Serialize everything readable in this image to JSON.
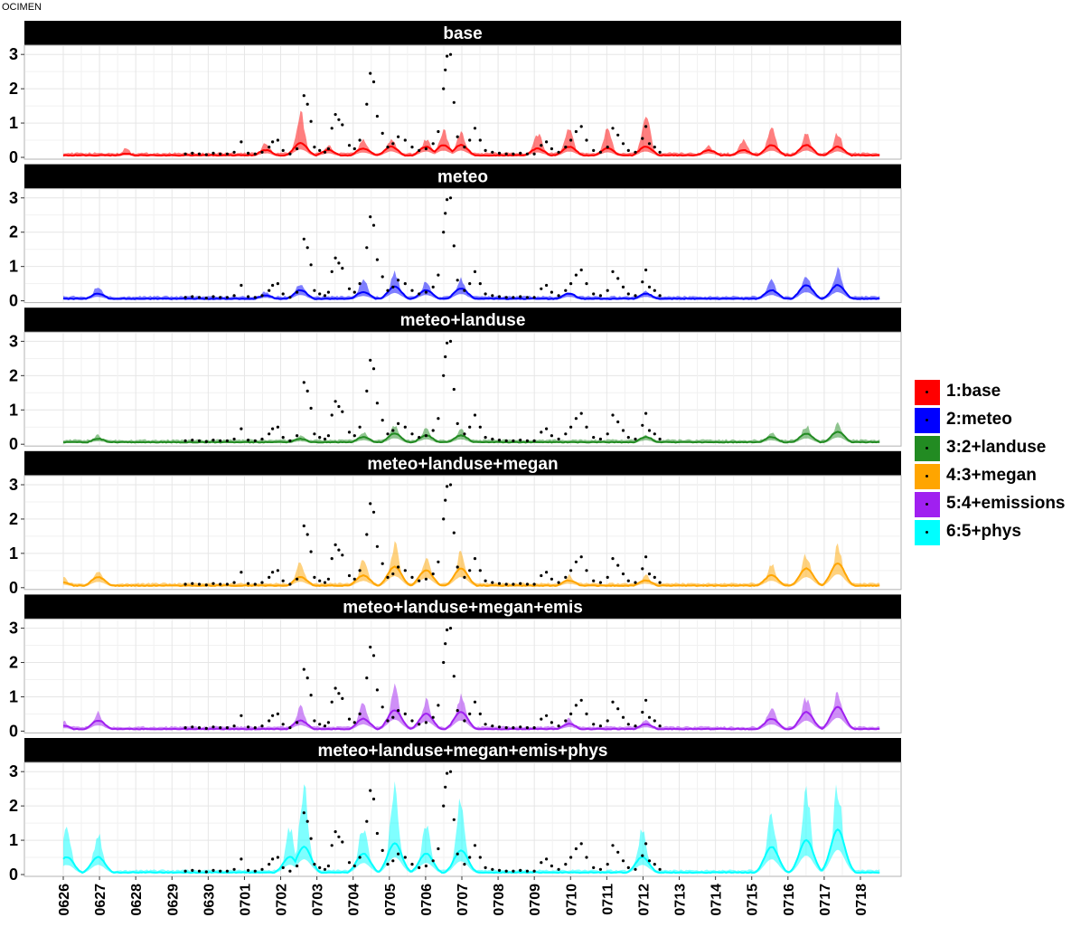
{
  "figure_title": "OCIMEN",
  "chart_data": {
    "type": "line",
    "title": "OCIMEN",
    "xlabel": "",
    "ylabel": "",
    "ylim": [
      0,
      3.1
    ],
    "y_ticks": [
      0,
      1,
      2,
      3
    ],
    "x_tick_labels": [
      "0626",
      "0627",
      "0628",
      "0629",
      "0630",
      "0701",
      "0702",
      "0703",
      "0704",
      "0705",
      "0706",
      "0707",
      "0708",
      "0709",
      "0710",
      "0711",
      "0712",
      "0713",
      "0714",
      "0715",
      "0716",
      "0717",
      "0718"
    ],
    "grid": true,
    "legend_position": "right",
    "legend": [
      {
        "label": "1:base",
        "color": "#ff0000"
      },
      {
        "label": "2:meteo",
        "color": "#0000ff"
      },
      {
        "label": "3:2+landuse",
        "color": "#228b22"
      },
      {
        "label": "4:3+megan",
        "color": "#ffa500"
      },
      {
        "label": "5:4+emissions",
        "color": "#a020f0"
      },
      {
        "label": "6:5+phys",
        "color": "#00ffff"
      }
    ],
    "panels": [
      {
        "strip": "base",
        "color": "#ff0000",
        "peaks": [
          [
            0.0,
            0.15,
            0.05
          ],
          [
            1.8,
            0.3,
            0.1
          ],
          [
            5.8,
            0.5,
            0.2
          ],
          [
            6.8,
            1.5,
            0.4
          ],
          [
            7.6,
            0.4,
            0.2
          ],
          [
            8.6,
            0.6,
            0.25
          ],
          [
            9.4,
            0.6,
            0.3
          ],
          [
            10.4,
            0.6,
            0.3
          ],
          [
            10.9,
            0.9,
            0.35
          ],
          [
            11.4,
            0.8,
            0.35
          ],
          [
            13.6,
            0.8,
            0.25
          ],
          [
            14.5,
            1.0,
            0.3
          ],
          [
            15.6,
            0.9,
            0.25
          ],
          [
            16.7,
            1.4,
            0.3
          ],
          [
            18.5,
            0.4,
            0.2
          ],
          [
            19.5,
            0.6,
            0.2
          ],
          [
            20.3,
            1.0,
            0.35
          ],
          [
            21.3,
            0.8,
            0.35
          ],
          [
            22.2,
            0.8,
            0.3
          ]
        ]
      },
      {
        "strip": "meteo",
        "color": "#0000ff",
        "peaks": [
          [
            0.0,
            0.15,
            0.05
          ],
          [
            1.0,
            0.5,
            0.2
          ],
          [
            5.8,
            0.3,
            0.15
          ],
          [
            6.8,
            0.6,
            0.3
          ],
          [
            8.6,
            0.7,
            0.25
          ],
          [
            9.5,
            0.9,
            0.4
          ],
          [
            10.4,
            0.6,
            0.3
          ],
          [
            11.4,
            0.7,
            0.35
          ],
          [
            14.5,
            0.3,
            0.2
          ],
          [
            16.7,
            0.3,
            0.2
          ],
          [
            20.3,
            0.7,
            0.3
          ],
          [
            21.3,
            0.9,
            0.45
          ],
          [
            22.2,
            1.0,
            0.45
          ]
        ]
      },
      {
        "strip": "meteo+landuse",
        "color": "#228b22",
        "peaks": [
          [
            0.0,
            0.1,
            0.05
          ],
          [
            1.0,
            0.3,
            0.15
          ],
          [
            6.8,
            0.3,
            0.15
          ],
          [
            8.6,
            0.4,
            0.2
          ],
          [
            9.5,
            0.6,
            0.3
          ],
          [
            10.4,
            0.5,
            0.25
          ],
          [
            11.4,
            0.5,
            0.25
          ],
          [
            16.7,
            0.3,
            0.2
          ],
          [
            20.3,
            0.4,
            0.2
          ],
          [
            21.3,
            0.6,
            0.3
          ],
          [
            22.2,
            0.7,
            0.35
          ]
        ]
      },
      {
        "strip": "meteo+landuse+megan",
        "color": "#ffa500",
        "peaks": [
          [
            0.0,
            0.35,
            0.15
          ],
          [
            1.0,
            0.6,
            0.3
          ],
          [
            6.8,
            0.8,
            0.3
          ],
          [
            8.6,
            0.9,
            0.35
          ],
          [
            9.5,
            1.4,
            0.6
          ],
          [
            10.4,
            1.0,
            0.5
          ],
          [
            11.4,
            1.2,
            0.55
          ],
          [
            14.5,
            0.4,
            0.2
          ],
          [
            16.7,
            0.4,
            0.2
          ],
          [
            20.3,
            0.8,
            0.35
          ],
          [
            21.3,
            1.1,
            0.55
          ],
          [
            22.2,
            1.3,
            0.7
          ]
        ]
      },
      {
        "strip": "meteo+landuse+megan+emis",
        "color": "#a020f0",
        "peaks": [
          [
            0.0,
            0.35,
            0.15
          ],
          [
            1.0,
            0.6,
            0.3
          ],
          [
            6.8,
            0.8,
            0.3
          ],
          [
            8.6,
            0.9,
            0.35
          ],
          [
            9.5,
            1.4,
            0.6
          ],
          [
            10.4,
            1.0,
            0.5
          ],
          [
            11.4,
            1.2,
            0.55
          ],
          [
            14.5,
            0.4,
            0.2
          ],
          [
            16.7,
            0.4,
            0.2
          ],
          [
            20.3,
            0.8,
            0.35
          ],
          [
            21.3,
            1.1,
            0.55
          ],
          [
            22.2,
            1.3,
            0.7
          ]
        ]
      },
      {
        "strip": "meteo+landuse+megan+emis+phys",
        "color": "#00ffff",
        "peaks": [
          [
            0.1,
            1.5,
            0.5
          ],
          [
            1.0,
            1.3,
            0.5
          ],
          [
            6.5,
            1.5,
            0.5
          ],
          [
            6.9,
            2.9,
            0.8
          ],
          [
            8.6,
            1.6,
            0.6
          ],
          [
            9.5,
            2.8,
            0.9
          ],
          [
            10.4,
            1.6,
            0.6
          ],
          [
            11.4,
            2.4,
            0.7
          ],
          [
            16.6,
            1.5,
            0.5
          ],
          [
            20.3,
            2.0,
            0.8
          ],
          [
            21.3,
            2.7,
            1.0
          ],
          [
            22.2,
            2.9,
            1.3
          ]
        ]
      }
    ],
    "observations": [
      [
        3.5,
        0.1
      ],
      [
        3.7,
        0.12
      ],
      [
        3.9,
        0.1
      ],
      [
        4.1,
        0.08
      ],
      [
        4.3,
        0.12
      ],
      [
        4.5,
        0.1
      ],
      [
        4.7,
        0.1
      ],
      [
        4.9,
        0.15
      ],
      [
        5.1,
        0.45
      ],
      [
        5.3,
        0.12
      ],
      [
        5.5,
        0.1
      ],
      [
        5.7,
        0.15
      ],
      [
        5.9,
        0.3
      ],
      [
        6.0,
        0.45
      ],
      [
        6.15,
        0.5
      ],
      [
        6.3,
        0.2
      ],
      [
        6.5,
        0.1
      ],
      [
        6.7,
        0.25
      ],
      [
        6.9,
        1.8
      ],
      [
        7.0,
        1.55
      ],
      [
        7.1,
        1.05
      ],
      [
        7.2,
        0.3
      ],
      [
        7.35,
        0.2
      ],
      [
        7.5,
        0.15
      ],
      [
        7.6,
        0.25
      ],
      [
        7.7,
        0.85
      ],
      [
        7.8,
        1.25
      ],
      [
        7.9,
        1.1
      ],
      [
        8.0,
        0.95
      ],
      [
        8.2,
        0.35
      ],
      [
        8.35,
        0.25
      ],
      [
        8.5,
        0.5
      ],
      [
        8.7,
        1.55
      ],
      [
        8.8,
        2.45
      ],
      [
        8.9,
        2.2
      ],
      [
        9.0,
        1.2
      ],
      [
        9.15,
        0.7
      ],
      [
        9.3,
        0.3
      ],
      [
        9.45,
        0.4
      ],
      [
        9.6,
        0.6
      ],
      [
        9.8,
        0.5
      ],
      [
        10.0,
        0.3
      ],
      [
        10.2,
        0.2
      ],
      [
        10.4,
        0.25
      ],
      [
        10.6,
        0.4
      ],
      [
        10.75,
        0.75
      ],
      [
        10.9,
        2.0
      ],
      [
        10.95,
        2.55
      ],
      [
        11.0,
        2.95
      ],
      [
        11.1,
        3.0
      ],
      [
        11.2,
        1.6
      ],
      [
        11.3,
        0.6
      ],
      [
        11.5,
        0.3
      ],
      [
        11.65,
        0.5
      ],
      [
        11.8,
        0.85
      ],
      [
        11.95,
        0.5
      ],
      [
        12.1,
        0.2
      ],
      [
        12.3,
        0.15
      ],
      [
        12.5,
        0.12
      ],
      [
        12.7,
        0.1
      ],
      [
        12.9,
        0.1
      ],
      [
        13.1,
        0.12
      ],
      [
        13.3,
        0.1
      ],
      [
        13.5,
        0.1
      ],
      [
        13.7,
        0.35
      ],
      [
        13.85,
        0.45
      ],
      [
        14.0,
        0.25
      ],
      [
        14.2,
        0.15
      ],
      [
        14.4,
        0.3
      ],
      [
        14.55,
        0.5
      ],
      [
        14.7,
        0.75
      ],
      [
        14.85,
        0.9
      ],
      [
        15.0,
        0.5
      ],
      [
        15.2,
        0.2
      ],
      [
        15.4,
        0.15
      ],
      [
        15.6,
        0.3
      ],
      [
        15.75,
        0.85
      ],
      [
        15.9,
        0.65
      ],
      [
        16.05,
        0.4
      ],
      [
        16.2,
        0.2
      ],
      [
        16.4,
        0.15
      ],
      [
        16.6,
        0.55
      ],
      [
        16.7,
        0.9
      ],
      [
        16.8,
        0.4
      ],
      [
        16.95,
        0.3
      ],
      [
        17.1,
        0.15
      ]
    ]
  }
}
